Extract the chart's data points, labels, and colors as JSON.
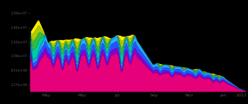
{
  "background_color": "#000000",
  "text_color": "#888888",
  "xlim": [
    0,
    365
  ],
  "ylim": [
    0,
    27000000
  ],
  "ytick_vals": [
    2170000,
    6510000,
    10850000,
    15200000,
    19540000,
    23880000
  ],
  "ytick_labels": [
    "2.17e+06",
    "6.51e+06",
    "1.09e+07",
    "1.52e+07",
    "1.95e+07",
    "2.39e+07"
  ],
  "xtick_positions": [
    28,
    88,
    148,
    210,
    270,
    328,
    358
  ],
  "xtick_labels": [
    "May",
    "May",
    "Jul",
    "Sep",
    "Nov",
    "Jan",
    "2022"
  ],
  "colors": [
    "#e6007a",
    "#8800cc",
    "#0044ff",
    "#0099ff",
    "#00cccc",
    "#00cc66",
    "#99dd00",
    "#ffee00"
  ],
  "n_points": 500
}
